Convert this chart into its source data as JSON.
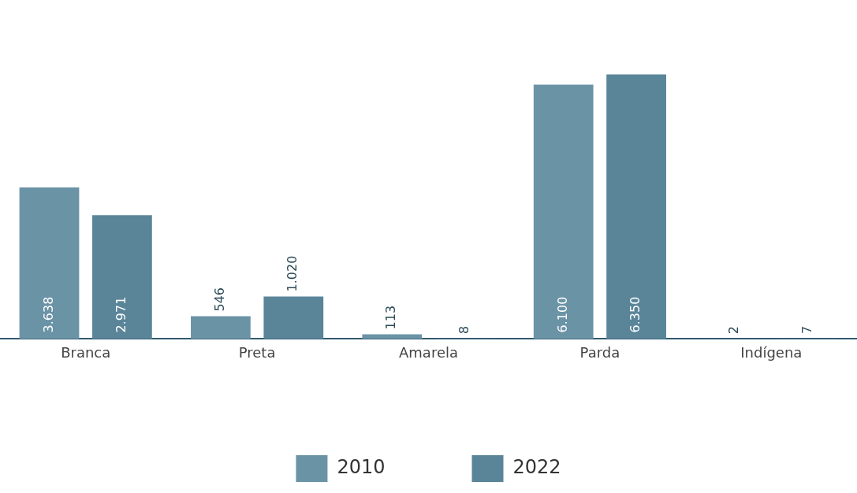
{
  "chart_data": {
    "type": "bar",
    "categories": [
      "Branca",
      "Preta",
      "Amarela",
      "Parda",
      "Indígena"
    ],
    "series": [
      {
        "name": "2010",
        "color": "#6b93a6",
        "values": [
          3638,
          546,
          113,
          6100,
          2
        ],
        "value_labels": [
          "3.638",
          "546",
          "113",
          "6.100",
          "2"
        ]
      },
      {
        "name": "2022",
        "color": "#5a8599",
        "values": [
          2971,
          1020,
          8,
          6350,
          7
        ],
        "value_labels": [
          "2.971",
          "1.020",
          "8",
          "6.350",
          "7"
        ]
      }
    ],
    "legend": "bottom"
  }
}
